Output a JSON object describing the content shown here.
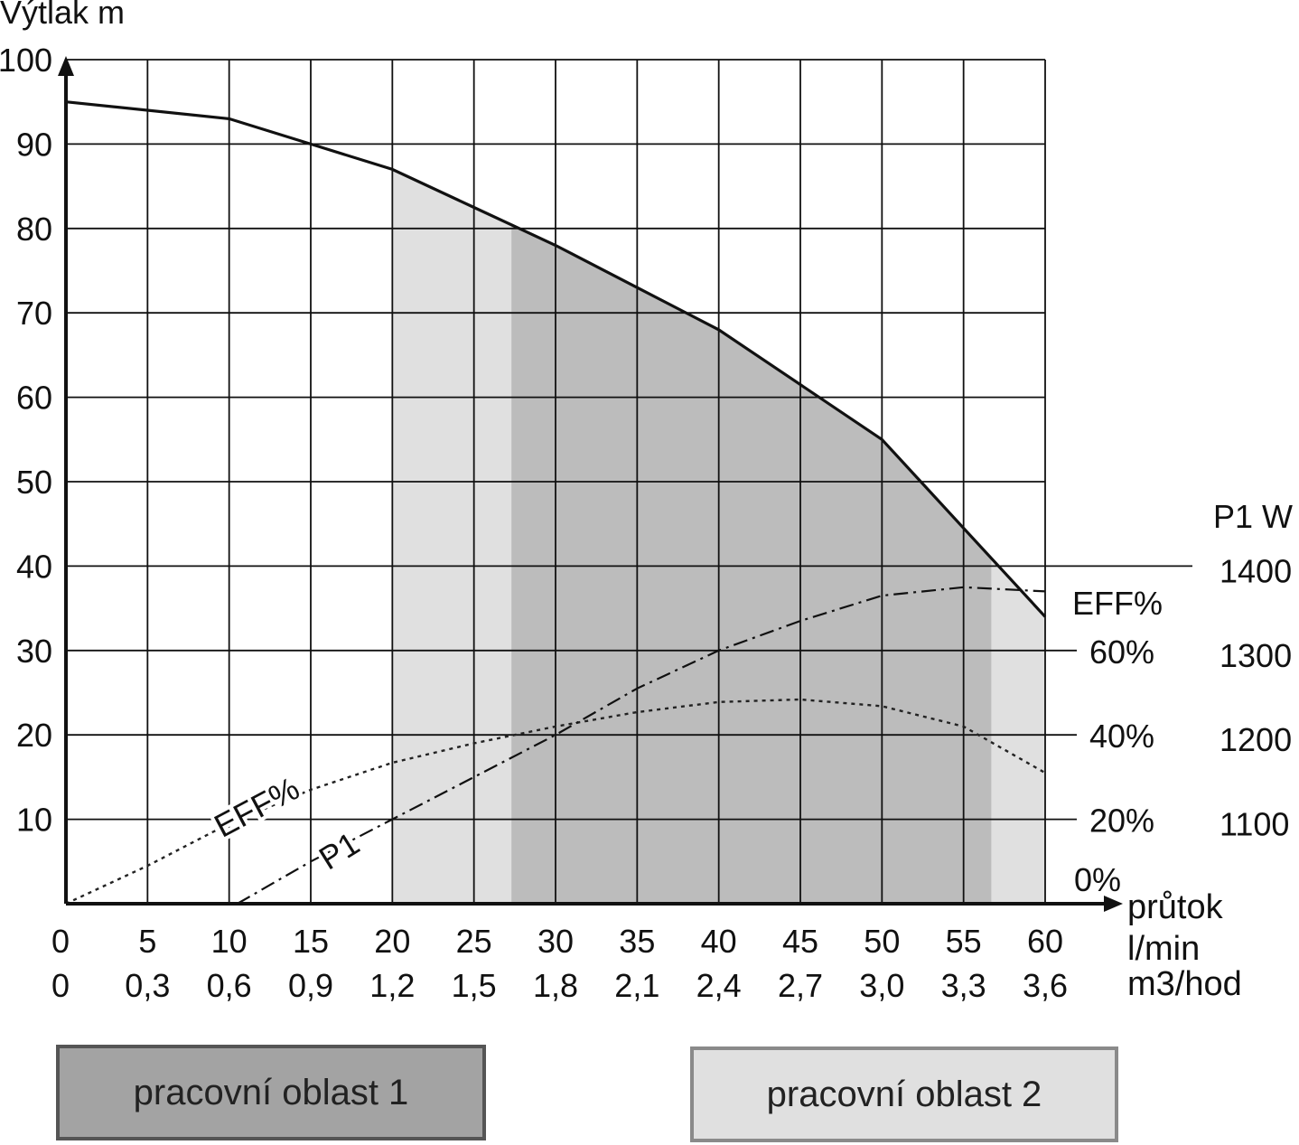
{
  "chart_data": {
    "type": "line",
    "y_axis_title": "Výtlak m",
    "x_axis_title": [
      "průtok",
      "l/min",
      "m3/hod"
    ],
    "x_ticks_lmin": [
      "0",
      "5",
      "10",
      "15",
      "20",
      "25",
      "30",
      "35",
      "40",
      "45",
      "50",
      "55",
      "60"
    ],
    "x_ticks_m3h": [
      "0",
      "0,3",
      "0,6",
      "0,9",
      "1,2",
      "1,5",
      "1,8",
      "2,1",
      "2,4",
      "2,7",
      "3,0",
      "3,3",
      "3,6"
    ],
    "y_ticks": [
      "100",
      "90",
      "80",
      "70",
      "60",
      "50",
      "40",
      "30",
      "20",
      "10"
    ],
    "xlim": [
      0,
      60
    ],
    "ylim": [
      0,
      100
    ],
    "grid": true,
    "right_axis_p1": {
      "title": "P1 W",
      "ticks": [
        {
          "label": "1400",
          "at_head_m": 40
        },
        {
          "label": "1300",
          "at_head_m": 30
        },
        {
          "label": "1200",
          "at_head_m": 20
        },
        {
          "label": "1100",
          "at_head_m": 10
        }
      ]
    },
    "right_axis_eff": {
      "title": "EFF%",
      "ticks": [
        {
          "label": "60%",
          "at_head_m": 30
        },
        {
          "label": "40%",
          "at_head_m": 20
        },
        {
          "label": "20%",
          "at_head_m": 10
        },
        {
          "label": "0%",
          "at_head_m": 0
        }
      ]
    },
    "series": [
      {
        "id": "head",
        "style": "solid",
        "x": [
          0,
          10,
          15,
          20,
          25,
          30,
          35,
          40,
          45,
          50,
          55,
          60
        ],
        "y": [
          95,
          93,
          90,
          87,
          82.5,
          78,
          73,
          68,
          61.5,
          55,
          44.5,
          34
        ]
      },
      {
        "id": "eff",
        "name": "EFF%",
        "style": "dotted",
        "x": [
          0,
          5,
          10,
          15,
          20,
          25,
          30,
          35,
          40,
          45,
          50,
          55,
          60
        ],
        "y": [
          0,
          4.5,
          9.5,
          13.5,
          16.7,
          19,
          21,
          22.7,
          23.9,
          24.2,
          23.4,
          21,
          15.5
        ]
      },
      {
        "id": "p1",
        "name": "P1",
        "style": "dashdot",
        "x": [
          10.5,
          15,
          20,
          25,
          30,
          35,
          40,
          45,
          50,
          55,
          60
        ],
        "y": [
          0,
          5,
          10,
          15,
          20,
          25.5,
          30,
          33.5,
          36.5,
          37.5,
          37
        ]
      }
    ],
    "regions": [
      {
        "id": "zone-2",
        "color": "#e0e0e0",
        "x_range": [
          20,
          60
        ]
      },
      {
        "id": "zone-1",
        "color": "#bcbcbc",
        "x_range": [
          27.3,
          56.7
        ]
      }
    ],
    "label_positions": [
      {
        "series": "eff",
        "label": "EFF%",
        "at_x": 15
      },
      {
        "series": "p1",
        "label": "P1",
        "at_x": 17
      }
    ],
    "legend": [
      {
        "label": "pracovní oblast 1",
        "color": "#a3a3a3"
      },
      {
        "label": "pracovní oblast 2",
        "color": "#e0e0e0"
      }
    ]
  }
}
